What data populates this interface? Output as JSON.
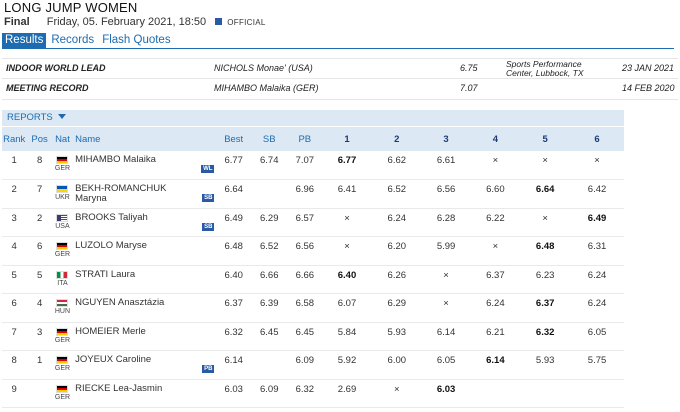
{
  "header": {
    "title": "LONG JUMP WOMEN",
    "round": "Final",
    "datetime": "Friday, 05. February 2021, 18:50",
    "official": "OFFICIAL"
  },
  "tabs": [
    "Results",
    "Records",
    "Flash Quotes"
  ],
  "records": [
    {
      "label": "INDOOR WORLD LEAD",
      "name": "NICHOLS Monae' (USA)",
      "mark": "6.75",
      "venue_line1": "Sports Performance",
      "venue_line2": "Center, Lubbock, TX",
      "date": "23 JAN 2021"
    },
    {
      "label": "MEETING RECORD",
      "name": "MIHAMBO Malaika (GER)",
      "mark": "7.07",
      "venue_line1": "",
      "venue_line2": "",
      "date": "14 FEB 2020"
    }
  ],
  "reports_label": "REPORTS",
  "columns": [
    "Rank",
    "Pos",
    "Nat",
    "Name",
    "Best",
    "SB",
    "PB",
    "1",
    "2",
    "3",
    "4",
    "5",
    "6"
  ],
  "flag_colors": {
    "GER": [
      "#000000",
      "#dd0000",
      "#ffce00"
    ],
    "UKR": [
      "#0057b7",
      "#0057b7",
      "#ffd700"
    ],
    "USA": [
      "#b22234",
      "#3c3b6e",
      "#ffffff"
    ],
    "ITA": [
      "#009246",
      "#ffffff",
      "#ce2b37"
    ],
    "HUN": [
      "#cd2a3e",
      "#ffffff",
      "#436f4d"
    ]
  },
  "rows": [
    {
      "rank": "1",
      "pos": "8",
      "nat": "GER",
      "name": "MIHAMBO Malaika",
      "name2": "",
      "badge": "WL",
      "best": "6.77",
      "sb": "6.74",
      "pb": "7.07",
      "att": [
        "6.77",
        "6.62",
        "6.61",
        "×",
        "×",
        "×"
      ],
      "bold": [
        0
      ]
    },
    {
      "rank": "2",
      "pos": "7",
      "nat": "UKR",
      "name": "BEKH-ROMANCHUK",
      "name2": "Maryna",
      "badge": "SB",
      "best": "6.64",
      "sb": "",
      "pb": "6.96",
      "att": [
        "6.41",
        "6.52",
        "6.56",
        "6.60",
        "6.64",
        "6.42"
      ],
      "bold": [
        4
      ]
    },
    {
      "rank": "3",
      "pos": "2",
      "nat": "USA",
      "name": "BROOKS Taliyah",
      "name2": "",
      "badge": "SB",
      "best": "6.49",
      "sb": "6.29",
      "pb": "6.57",
      "att": [
        "×",
        "6.24",
        "6.28",
        "6.22",
        "×",
        "6.49"
      ],
      "bold": [
        5
      ]
    },
    {
      "rank": "4",
      "pos": "6",
      "nat": "GER",
      "name": "LUZOLO Maryse",
      "name2": "",
      "badge": "",
      "best": "6.48",
      "sb": "6.52",
      "pb": "6.56",
      "att": [
        "×",
        "6.20",
        "5.99",
        "×",
        "6.48",
        "6.31"
      ],
      "bold": [
        4
      ]
    },
    {
      "rank": "5",
      "pos": "5",
      "nat": "ITA",
      "name": "STRATI Laura",
      "name2": "",
      "badge": "",
      "best": "6.40",
      "sb": "6.66",
      "pb": "6.66",
      "att": [
        "6.40",
        "6.26",
        "×",
        "6.37",
        "6.23",
        "6.24"
      ],
      "bold": [
        0
      ]
    },
    {
      "rank": "6",
      "pos": "4",
      "nat": "HUN",
      "name": "NGUYEN Anasztázia",
      "name2": "",
      "badge": "",
      "best": "6.37",
      "sb": "6.39",
      "pb": "6.58",
      "att": [
        "6.07",
        "6.29",
        "×",
        "6.24",
        "6.37",
        "6.24"
      ],
      "bold": [
        4
      ]
    },
    {
      "rank": "7",
      "pos": "3",
      "nat": "GER",
      "name": "HOMEIER Merle",
      "name2": "",
      "badge": "",
      "best": "6.32",
      "sb": "6.45",
      "pb": "6.45",
      "att": [
        "5.84",
        "5.93",
        "6.14",
        "6.21",
        "6.32",
        "6.05"
      ],
      "bold": [
        4
      ]
    },
    {
      "rank": "8",
      "pos": "1",
      "nat": "GER",
      "name": "JOYEUX Caroline",
      "name2": "",
      "badge": "PB",
      "best": "6.14",
      "sb": "",
      "pb": "6.09",
      "att": [
        "5.92",
        "6.00",
        "6.05",
        "6.14",
        "5.93",
        "5.75"
      ],
      "bold": [
        3
      ]
    },
    {
      "rank": "9",
      "pos": "",
      "nat": "GER",
      "name": "RIECKE Lea-Jasmin",
      "name2": "",
      "badge": "",
      "best": "6.03",
      "sb": "6.09",
      "pb": "6.32",
      "att": [
        "2.69",
        "×",
        "6.03",
        "",
        "",
        ""
      ],
      "bold": [
        2
      ]
    }
  ]
}
